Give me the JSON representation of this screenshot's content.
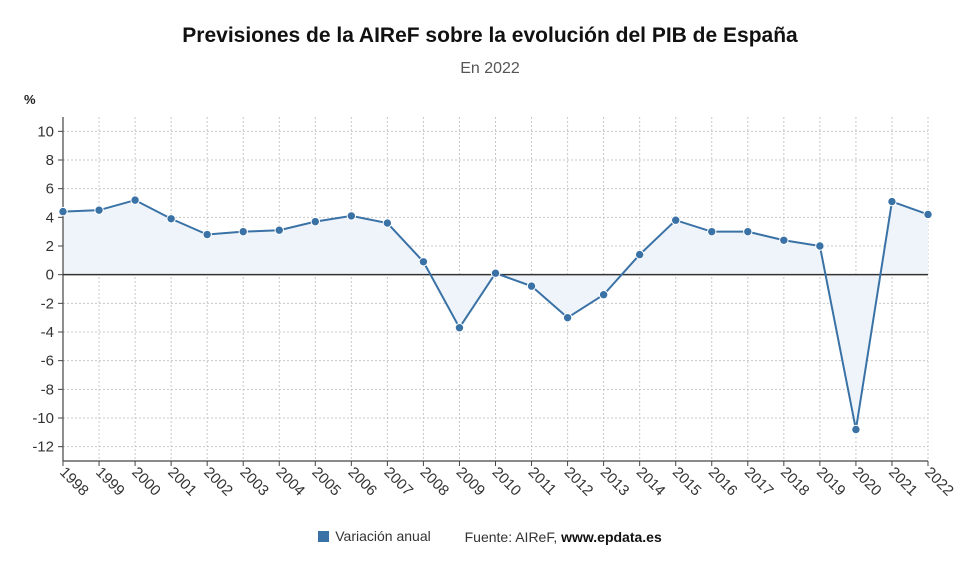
{
  "chart_data": {
    "type": "line",
    "title": "Previsiones de la AIReF sobre la evolución del PIB de España",
    "subtitle": "En 2022",
    "ylabel": "%",
    "xlabel": "",
    "ylim": [
      -13,
      11
    ],
    "yticks": [
      10,
      8,
      6,
      4,
      2,
      0,
      -2,
      -4,
      -6,
      -8,
      -10,
      -12
    ],
    "categories": [
      "1998",
      "1999",
      "2000",
      "2001",
      "2002",
      "2003",
      "2004",
      "2005",
      "2006",
      "2007",
      "2008",
      "2009",
      "2010",
      "2011",
      "2012",
      "2013",
      "2014",
      "2015",
      "2016",
      "2017",
      "2018",
      "2019",
      "2020",
      "2021",
      "2022"
    ],
    "series": [
      {
        "name": "Variación anual",
        "color": "#3a72a6",
        "values": [
          4.4,
          4.5,
          5.2,
          3.9,
          2.8,
          3.0,
          3.1,
          3.7,
          4.1,
          3.6,
          0.9,
          -3.7,
          0.1,
          -0.8,
          -3.0,
          -1.4,
          1.4,
          3.8,
          3.0,
          3.0,
          2.4,
          2.0,
          -10.8,
          5.1,
          4.2
        ]
      }
    ],
    "grid": true,
    "area_fill_color": "#eef4fa"
  },
  "legend": {
    "series_label": "Variación anual",
    "source_prefix": "Fuente: AIReF, ",
    "source_site": "www.epdata.es"
  }
}
